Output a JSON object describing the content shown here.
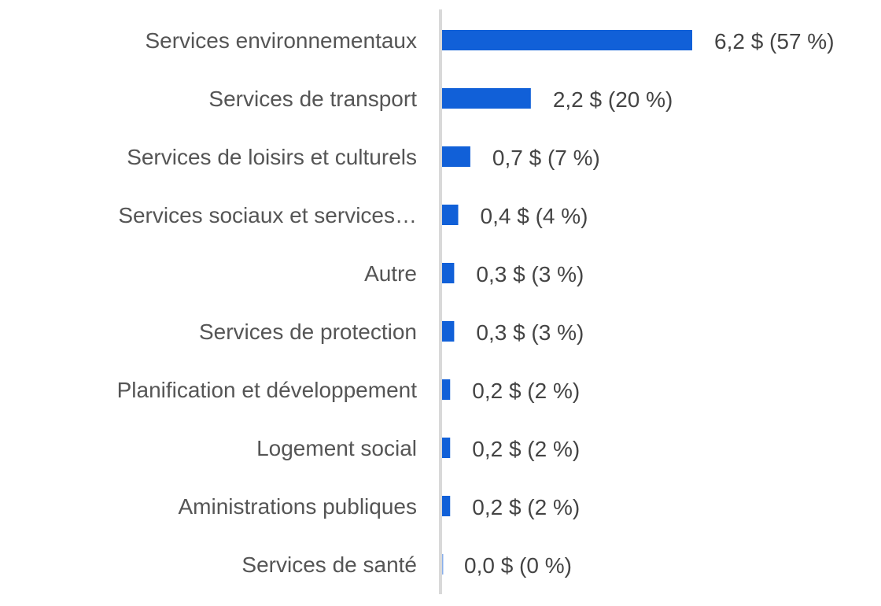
{
  "chart_data": {
    "type": "bar",
    "orientation": "horizontal",
    "title": "",
    "xlabel": "",
    "ylabel": "",
    "categories": [
      "Services environnementaux",
      "Services de transport",
      "Services de loisirs et culturels",
      "Services sociaux et services…",
      "Autre",
      "Services de protection",
      "Planification et développement",
      "Logement social",
      "Aministrations publiques",
      "Services de santé"
    ],
    "values": [
      6.2,
      2.2,
      0.7,
      0.4,
      0.3,
      0.3,
      0.2,
      0.2,
      0.2,
      0.0
    ],
    "percentages": [
      57,
      20,
      7,
      4,
      3,
      3,
      2,
      2,
      2,
      0
    ],
    "data_labels": [
      "6,2 $ (57 %)",
      "2,2 $ (20 %)",
      "0,7 $ (7 %)",
      "0,4 $ (4 %)",
      "0,3 $ (3 %)",
      "0,3 $ (3 %)",
      "0,2 $ (2 %)",
      "0,2 $ (2 %)",
      "0,2 $ (2 %)",
      "0,0 $ (0 %)"
    ],
    "xlim": [
      0,
      6.2
    ],
    "grid": false,
    "legend": "none",
    "bar_color": "#1160D8",
    "axis_color": "#D9D9D9"
  }
}
